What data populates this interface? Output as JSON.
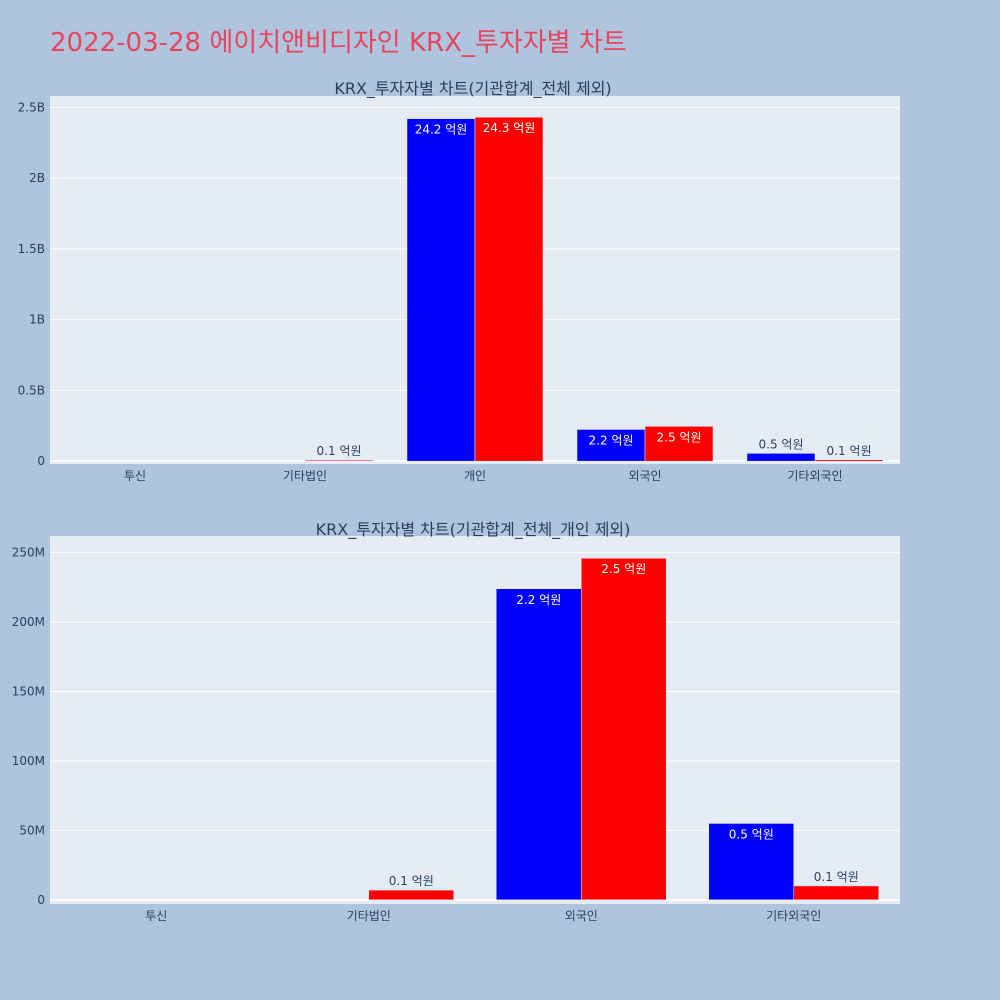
{
  "page_title": "2022-03-28 에이치앤비디자인 KRX_투자자별 차트",
  "colors": {
    "background": "#b0c4de",
    "plot_bg": "#e5ecf6",
    "title": "#e8455f",
    "series_blue": "#0000ff",
    "series_red": "#ff0000"
  },
  "chart_data": [
    {
      "type": "bar",
      "title": "KRX_투자자별 차트(기관합계_전체 제외)",
      "categories": [
        "투신",
        "기타법인",
        "개인",
        "외국인",
        "기타외국인"
      ],
      "series": [
        {
          "color": "#0000ff",
          "values": [
            0,
            0,
            2420000000,
            224000000,
            55000000
          ],
          "labels": [
            "",
            "",
            "24.2 억원",
            "2.2 억원",
            "0.5 억원"
          ]
        },
        {
          "color": "#ff0000",
          "values": [
            0,
            7000000,
            2430000000,
            246000000,
            10000000
          ],
          "labels": [
            "",
            "0.1 억원",
            "24.3 억원",
            "2.5 억원",
            "0.1 억원"
          ]
        }
      ],
      "ylim": [
        -20000000,
        2580000000
      ],
      "yticks": [
        0,
        500000000,
        1000000000,
        1500000000,
        2000000000,
        2500000000
      ],
      "yticklabels": [
        "0",
        "0.5B",
        "1B",
        "1.5B",
        "2B",
        "2.5B"
      ],
      "grid": true
    },
    {
      "type": "bar",
      "title": "KRX_투자자별 차트(기관합계_전체_개인 제외)",
      "categories": [
        "투신",
        "기타법인",
        "외국인",
        "기타외국인"
      ],
      "series": [
        {
          "color": "#0000ff",
          "values": [
            0,
            0,
            224000000,
            55000000
          ],
          "labels": [
            "",
            "",
            "2.2 억원",
            "0.5 억원"
          ]
        },
        {
          "color": "#ff0000",
          "values": [
            0,
            7000000,
            246000000,
            10000000
          ],
          "labels": [
            "",
            "0.1 억원",
            "2.5 억원",
            "0.1 억원"
          ]
        }
      ],
      "ylim": [
        -3000000,
        262000000
      ],
      "yticks": [
        0,
        50000000,
        100000000,
        150000000,
        200000000,
        250000000
      ],
      "yticklabels": [
        "0",
        "50M",
        "100M",
        "150M",
        "200M",
        "250M"
      ],
      "grid": true
    }
  ]
}
